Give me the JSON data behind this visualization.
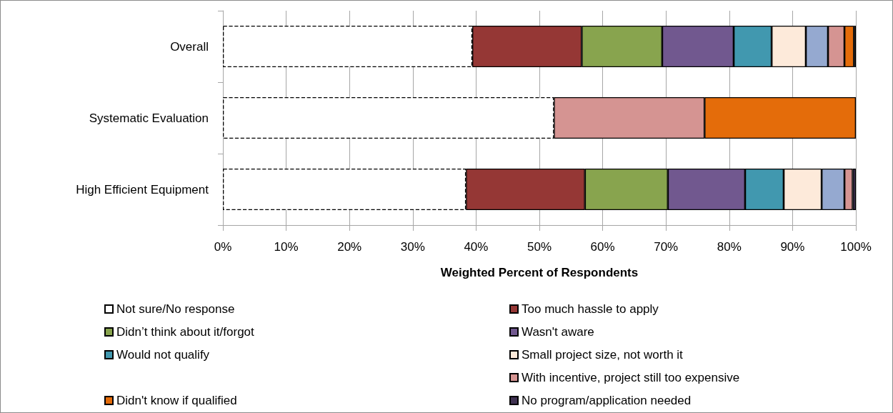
{
  "chart_data": {
    "type": "bar",
    "orientation": "horizontal",
    "stacked": true,
    "categories": [
      "Overall",
      "Systematic Evaluation",
      "High Efficient Equipment"
    ],
    "xlabel": "Weighted Percent of Respondents",
    "xlim": [
      0,
      100
    ],
    "xticks": [
      {
        "value": 0,
        "label": "0%"
      },
      {
        "value": 10,
        "label": "10%"
      },
      {
        "value": 20,
        "label": "20%"
      },
      {
        "value": 30,
        "label": "30%"
      },
      {
        "value": 40,
        "label": "40%"
      },
      {
        "value": 50,
        "label": "50%"
      },
      {
        "value": 60,
        "label": "60%"
      },
      {
        "value": 70,
        "label": "70%"
      },
      {
        "value": 80,
        "label": "80%"
      },
      {
        "value": 90,
        "label": "90%"
      },
      {
        "value": 100,
        "label": "100%"
      }
    ],
    "grid": "x",
    "legend": "bottom",
    "series": [
      {
        "name": "Not sure/No response",
        "color": "#ffffff",
        "line_style": "dashed",
        "values": [
          39.4,
          52.3,
          38.4
        ]
      },
      {
        "name": "Too much hassle to apply",
        "color": "#953735",
        "values": [
          17.3,
          null,
          18.8
        ]
      },
      {
        "name": "Didn’t think about it/forgot",
        "color": "#88a44e",
        "values": [
          12.7,
          null,
          13.1
        ]
      },
      {
        "name": "Wasn't aware",
        "color": "#71588f",
        "values": [
          11.3,
          null,
          12.2
        ]
      },
      {
        "name": "Would not qualify",
        "color": "#4198af",
        "values": [
          6.0,
          null,
          6.1
        ]
      },
      {
        "name": "Small project size, not worth it",
        "color": "#fdeada",
        "values": [
          5.4,
          null,
          6.0
        ]
      },
      {
        "color": "#95a9d0",
        "values": [
          3.5,
          null,
          3.6
        ]
      },
      {
        "name": "With incentive, project still too expensive",
        "color": "#d59492",
        "values": [
          2.6,
          23.8,
          1.3
        ]
      },
      {
        "name": "Didn't know if qualified",
        "color": "#e46c0a",
        "values": [
          1.5,
          23.9,
          null
        ]
      },
      {
        "name": "No program/application needed",
        "color": "#3f3151",
        "values": [
          0.3,
          null,
          0.5
        ]
      }
    ]
  }
}
